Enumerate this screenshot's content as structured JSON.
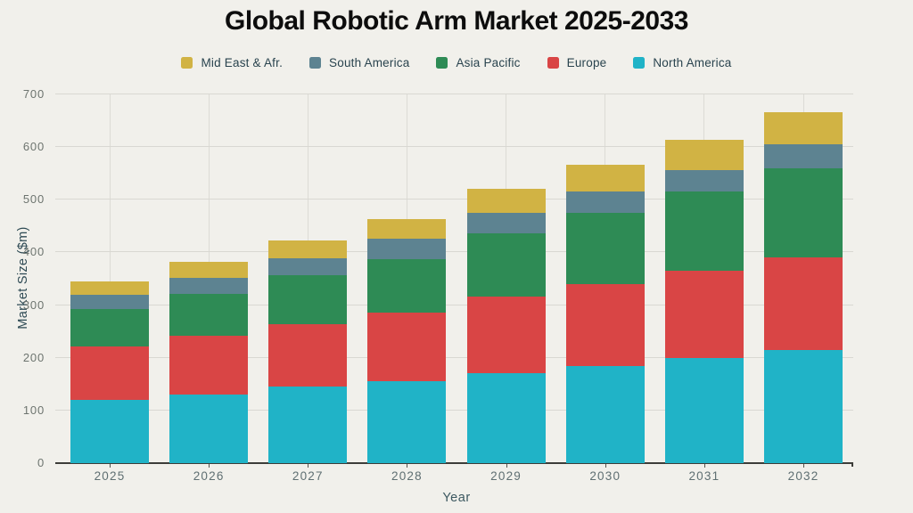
{
  "chart_data": {
    "type": "bar",
    "stacked": true,
    "title": "Global Robotic Arm Market 2025-2033",
    "xlabel": "Year",
    "ylabel": "Market Size ($m)",
    "categories": [
      "2025",
      "2026",
      "2027",
      "2028",
      "2029",
      "2030",
      "2031",
      "2032"
    ],
    "series": [
      {
        "name": "North America",
        "color": "#20b3c7",
        "values": [
          120,
          130,
          145,
          155,
          170,
          185,
          200,
          215
        ]
      },
      {
        "name": "Europe",
        "color": "#d94545",
        "values": [
          102,
          111,
          118,
          131,
          147,
          155,
          165,
          175
        ]
      },
      {
        "name": "Asia Pacific",
        "color": "#2e8b55",
        "values": [
          70,
          80,
          93,
          101,
          119,
          135,
          150,
          170
        ]
      },
      {
        "name": "South America",
        "color": "#5d8391",
        "values": [
          28,
          31,
          33,
          39,
          39,
          41,
          42,
          45
        ]
      },
      {
        "name": "Mid East & Afr.",
        "color": "#d1b344",
        "values": [
          25,
          30,
          33,
          37,
          45,
          51,
          56,
          62
        ]
      }
    ],
    "stack_totals": [
      345,
      382,
      422,
      463,
      520,
      567,
      613,
      667
    ],
    "stack_order": "bottom-to-top",
    "legend_order": [
      "Mid East & Afr.",
      "South America",
      "Asia Pacific",
      "Europe",
      "North America"
    ],
    "legend_position": "top",
    "ylim": [
      0,
      700
    ],
    "yticks": [
      0,
      100,
      200,
      300,
      400,
      500,
      600,
      700
    ],
    "grid": true,
    "colors": {
      "background": "#f1f0eb",
      "gridline": "#d9d8d2",
      "axis_line": "#3d3d39",
      "tick_label": "#6d746f",
      "axis_title": "#2e4a54",
      "legend_text": "#29434e",
      "title_text": "#0d0d0d"
    }
  }
}
